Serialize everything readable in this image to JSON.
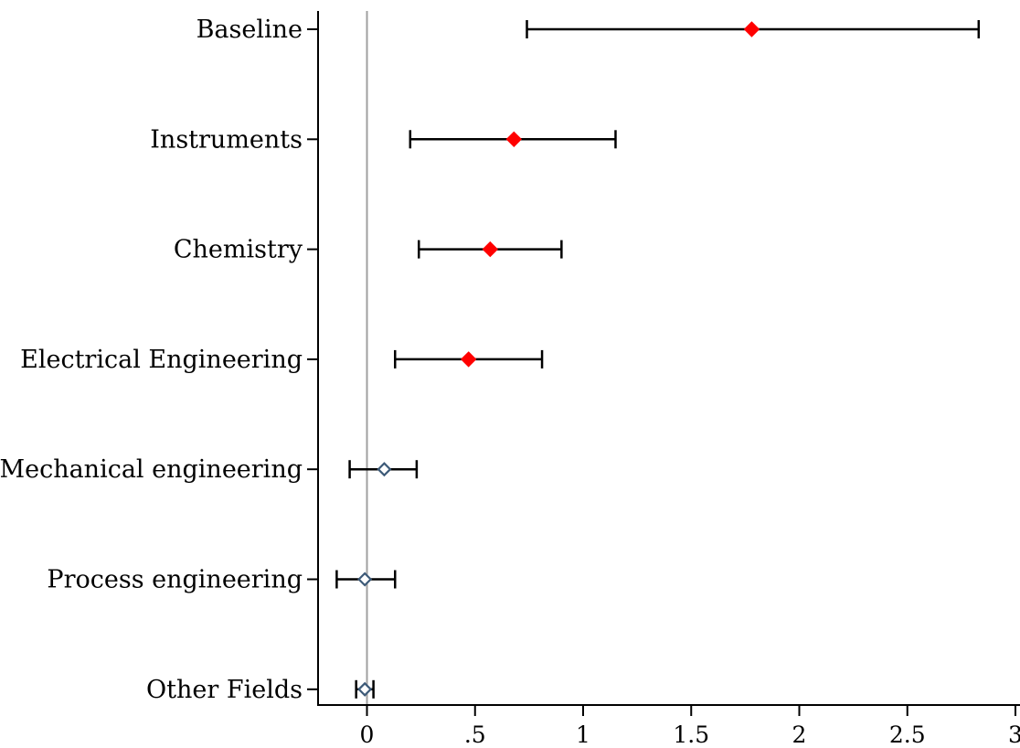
{
  "chart_data": {
    "type": "scatter",
    "subtype": "coefficient-plot-with-confidence-intervals",
    "orientation": "horizontal",
    "title": "",
    "xlabel": "",
    "ylabel": "",
    "categories": [
      "Baseline",
      "Instruments",
      "Chemistry",
      "Electrical Engineering",
      "Mechanical engineering",
      "Process engineering",
      "Other Fields"
    ],
    "estimates": [
      1.78,
      0.68,
      0.57,
      0.47,
      0.08,
      -0.01,
      -0.01
    ],
    "ci_low": [
      0.74,
      0.2,
      0.24,
      0.13,
      -0.08,
      -0.14,
      -0.05
    ],
    "ci_high": [
      2.83,
      1.15,
      0.9,
      0.81,
      0.23,
      0.13,
      0.03
    ],
    "significant": [
      true,
      true,
      true,
      true,
      false,
      false,
      false
    ],
    "xlim": [
      -0.24,
      3.03
    ],
    "xticks": [
      0,
      0.5,
      1,
      1.5,
      2,
      2.5,
      3
    ],
    "xtick_labels": [
      "0",
      ".5",
      "1",
      "1.5",
      "2",
      "2.5",
      "3"
    ],
    "reference_line_x": 0,
    "grid": false,
    "legend": "none",
    "colors": {
      "significant_marker": "#ff0000",
      "nonsignificant_marker": "#3d5a78",
      "error_bar": "#000000",
      "reference_line": "#a0a0a0",
      "axis": "#000000"
    },
    "marker_style": {
      "significant": "filled-diamond",
      "nonsignificant": "hollow-diamond"
    }
  }
}
